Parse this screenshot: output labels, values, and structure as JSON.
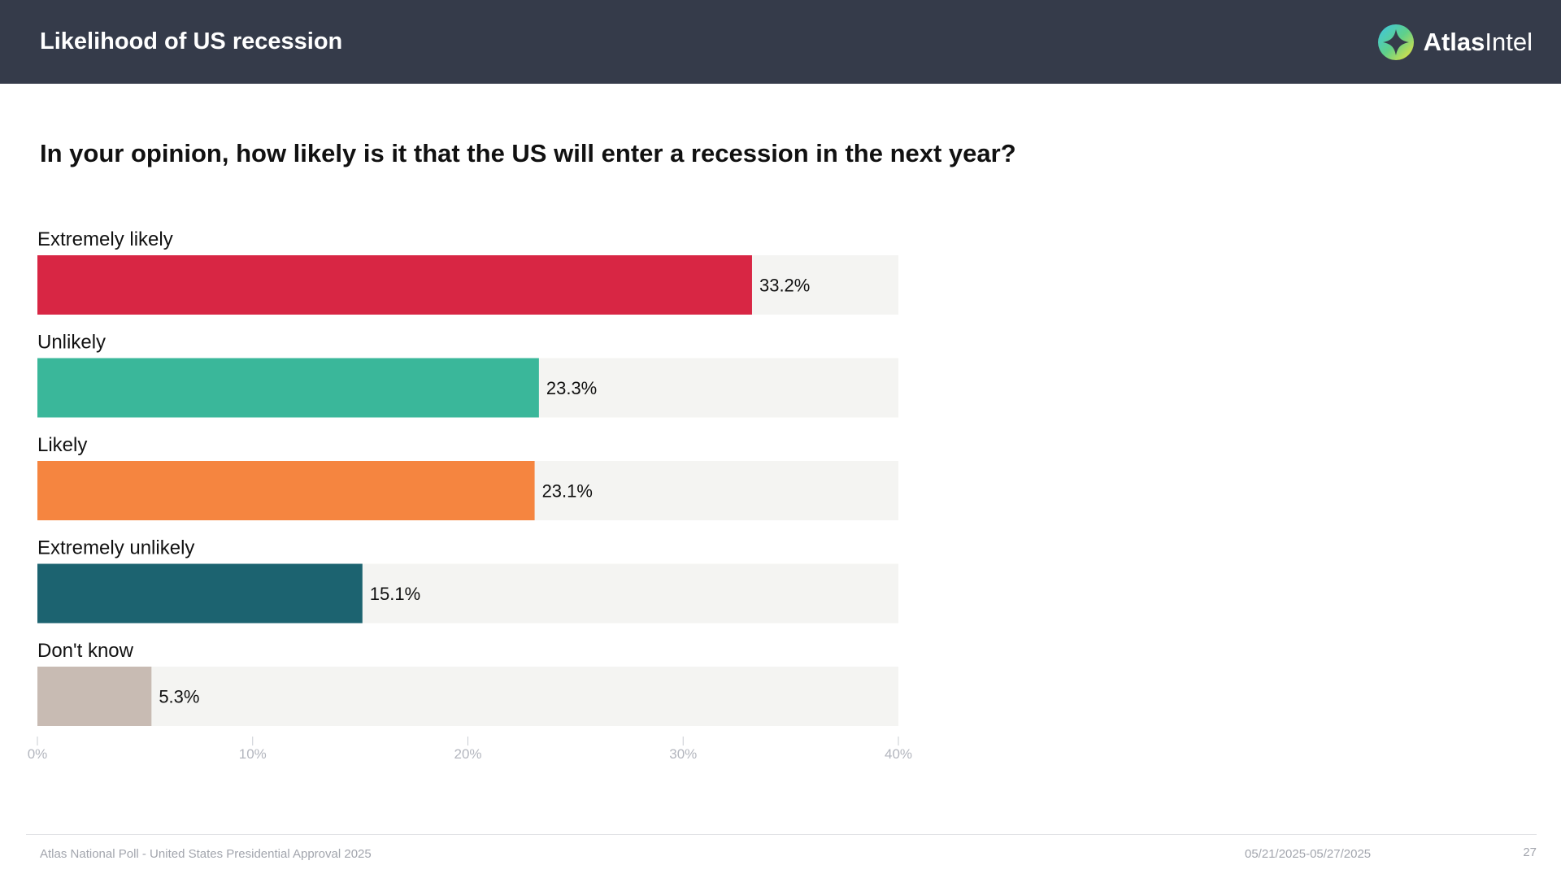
{
  "header": {
    "title": "Likelihood of US recession",
    "logo_text_bold": "Atlas",
    "logo_text_regular": "Intel"
  },
  "question": "In your opinion, how likely is it that the US will enter a recession in the next year?",
  "chart_data": {
    "type": "bar",
    "orientation": "horizontal",
    "title": "In your opinion, how likely is it that the US will enter a recession in the next year?",
    "categories": [
      "Extremely likely",
      "Unlikely",
      "Likely",
      "Extremely unlikely",
      "Don't know"
    ],
    "values": [
      33.2,
      23.3,
      23.1,
      15.1,
      5.3
    ],
    "value_labels": [
      "33.2%",
      "23.3%",
      "23.1%",
      "15.1%",
      "5.3%"
    ],
    "colors": [
      "#d82644",
      "#3ab79a",
      "#f58540",
      "#1c6370",
      "#c8bbb3"
    ],
    "track_color": "#f4f4f2",
    "xlim": [
      0,
      40
    ],
    "xticks": [
      0,
      10,
      20,
      30,
      40
    ],
    "xtick_labels": [
      "0%",
      "10%",
      "20%",
      "30%",
      "40%"
    ],
    "xlabel": "",
    "ylabel": "",
    "grid": false,
    "legend": "none"
  },
  "footer": {
    "source": "Atlas National Poll - United States Presidential Approval 2025",
    "dates": "05/21/2025-05/27/2025",
    "page_number": "27"
  }
}
